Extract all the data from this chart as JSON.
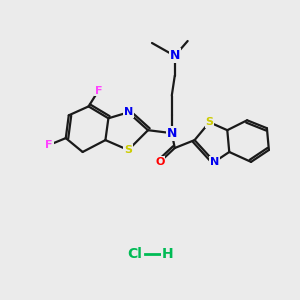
{
  "background_color": "#ebebeb",
  "bond_color": "#1a1a1a",
  "bond_width": 1.6,
  "atom_colors": {
    "N": "#0000ee",
    "S": "#cccc00",
    "O": "#ff0000",
    "F": "#ff44ff",
    "C": "#1a1a1a"
  },
  "hcl_color": "#00bb55",
  "figsize": [
    3.0,
    3.0
  ],
  "dpi": 100
}
